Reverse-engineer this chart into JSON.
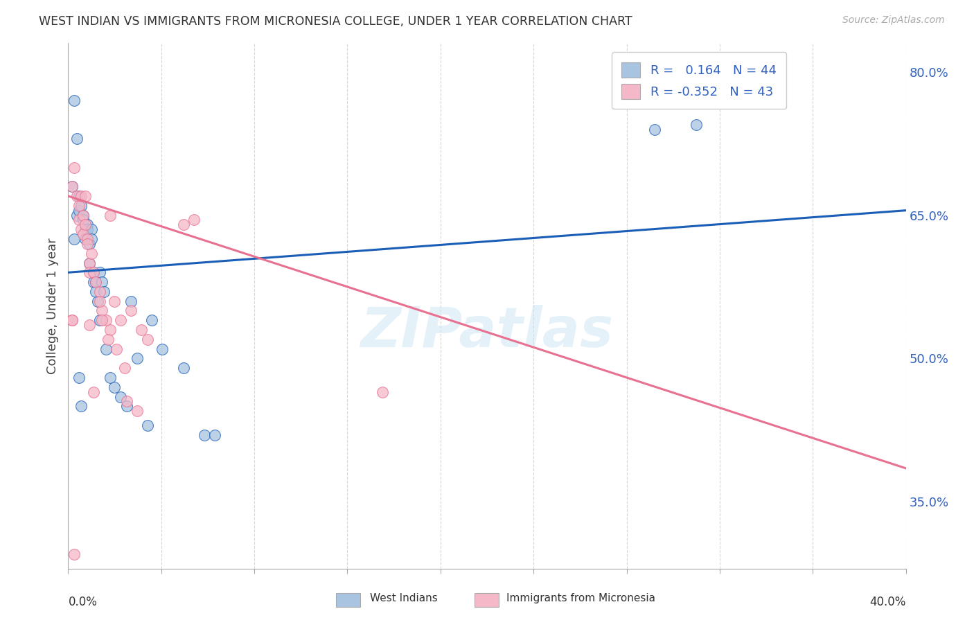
{
  "title": "WEST INDIAN VS IMMIGRANTS FROM MICRONESIA COLLEGE, UNDER 1 YEAR CORRELATION CHART",
  "source": "Source: ZipAtlas.com",
  "ylabel": "College, Under 1 year",
  "right_ytick_vals": [
    35.0,
    50.0,
    65.0,
    80.0
  ],
  "right_ytick_labels": [
    "35.0%",
    "50.0%",
    "65.0%",
    "80.0%"
  ],
  "xmin": 0.0,
  "xmax": 40.0,
  "ymin": 28.0,
  "ymax": 83.0,
  "blue_R": 0.164,
  "blue_N": 44,
  "pink_R": -0.352,
  "pink_N": 43,
  "blue_color": "#a8c4e0",
  "pink_color": "#f4b8c8",
  "blue_line_color": "#1a5eb8",
  "pink_line_color": "#e87090",
  "legend_text_color": "#3060c0",
  "background_color": "#ffffff",
  "watermark": "ZIPatlas",
  "blue_line_y0": 59.0,
  "blue_line_y1": 65.5,
  "pink_line_y0": 67.0,
  "pink_line_y1": 38.5,
  "blue_scatter_x": [
    0.2,
    0.3,
    0.4,
    0.5,
    0.5,
    0.6,
    0.7,
    0.7,
    0.8,
    0.8,
    0.9,
    0.9,
    1.0,
    1.0,
    1.1,
    1.1,
    1.2,
    1.2,
    1.3,
    1.3,
    1.4,
    1.5,
    1.5,
    1.6,
    1.7,
    1.8,
    2.0,
    2.2,
    2.5,
    2.8,
    3.0,
    3.3,
    3.8,
    4.0,
    4.5,
    5.5,
    6.5,
    7.0,
    0.3,
    0.4,
    0.5,
    0.6,
    28.0,
    30.0
  ],
  "blue_scatter_y": [
    68.0,
    62.5,
    65.0,
    67.0,
    65.5,
    66.0,
    65.0,
    64.5,
    63.5,
    62.5,
    64.0,
    63.5,
    60.0,
    62.0,
    63.5,
    62.5,
    59.0,
    58.0,
    58.0,
    57.0,
    56.0,
    54.0,
    59.0,
    58.0,
    57.0,
    51.0,
    48.0,
    47.0,
    46.0,
    45.0,
    56.0,
    50.0,
    43.0,
    54.0,
    51.0,
    49.0,
    42.0,
    42.0,
    77.0,
    73.0,
    48.0,
    45.0,
    74.0,
    74.5
  ],
  "pink_scatter_x": [
    0.2,
    0.3,
    0.4,
    0.5,
    0.5,
    0.6,
    0.6,
    0.7,
    0.7,
    0.8,
    0.8,
    0.9,
    0.9,
    1.0,
    1.0,
    1.1,
    1.2,
    1.3,
    1.5,
    1.6,
    1.8,
    2.0,
    2.2,
    2.5,
    2.7,
    2.8,
    3.0,
    3.3,
    3.5,
    3.8,
    1.5,
    1.6,
    1.9,
    2.0,
    2.3,
    6.0,
    5.5,
    0.2,
    1.0,
    1.2,
    15.0,
    0.2,
    0.3
  ],
  "pink_scatter_y": [
    68.0,
    70.0,
    67.0,
    66.0,
    64.5,
    67.0,
    63.5,
    65.0,
    63.0,
    67.0,
    64.0,
    62.5,
    62.0,
    60.0,
    59.0,
    61.0,
    59.0,
    58.0,
    57.0,
    55.0,
    54.0,
    53.0,
    56.0,
    54.0,
    49.0,
    45.5,
    55.0,
    44.5,
    53.0,
    52.0,
    56.0,
    54.0,
    52.0,
    65.0,
    51.0,
    64.5,
    64.0,
    54.0,
    53.5,
    46.5,
    46.5,
    54.0,
    29.5
  ]
}
